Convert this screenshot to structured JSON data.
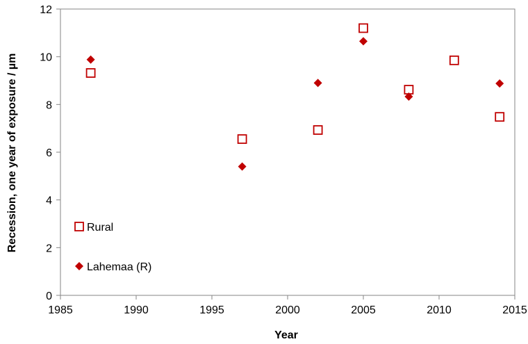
{
  "chart_data": {
    "type": "scatter",
    "title": "",
    "xlabel": "Year",
    "ylabel": "Recession, one year of exposure / µm",
    "xlim": [
      1985,
      2015
    ],
    "ylim": [
      0,
      12
    ],
    "xticks": [
      "1985",
      "1990",
      "1995",
      "2000",
      "2005",
      "2010",
      "2015"
    ],
    "yticks": [
      "0",
      "2",
      "4",
      "6",
      "8",
      "10",
      "12"
    ],
    "grid": false,
    "legend_position": "bottom-left",
    "series": [
      {
        "name": "Rural",
        "marker": "hollow-square",
        "color": "#c00000",
        "x": [
          1987,
          1997,
          2002,
          2005,
          2008,
          2011,
          2014
        ],
        "y": [
          9.32,
          6.55,
          6.93,
          11.2,
          8.62,
          9.85,
          7.48
        ]
      },
      {
        "name": "Lahemaa (R)",
        "marker": "filled-diamond",
        "color": "#c00000",
        "x": [
          1987,
          1997,
          2002,
          2005,
          2008,
          2014
        ],
        "y": [
          9.88,
          5.4,
          8.9,
          10.65,
          8.33,
          8.88
        ]
      }
    ]
  }
}
